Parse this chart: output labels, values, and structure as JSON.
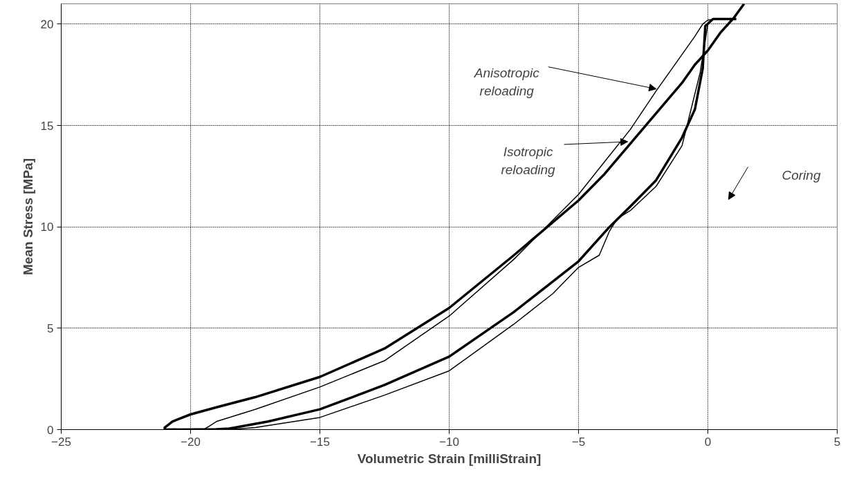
{
  "chart_data": {
    "type": "line",
    "xlabel": "Volumetric Strain [milliStrain]",
    "ylabel": "Mean Stress [MPa]",
    "xlim": [
      -25,
      5
    ],
    "ylim": [
      0,
      21
    ],
    "xticks": [
      -25,
      -20,
      -15,
      -10,
      -5,
      0,
      5
    ],
    "yticks": [
      0,
      5,
      10,
      15,
      20
    ],
    "grid": true,
    "line_style": "solid",
    "marker": "none",
    "series": [
      {
        "color": "#000000",
        "x": [
          1.1,
          0.2,
          -0.1,
          -0.2,
          -0.5,
          -1,
          -2,
          -3,
          -3.8,
          -5,
          -7.5,
          -10,
          -12.5,
          -15,
          -17,
          -18.5,
          -19,
          -21,
          -21,
          -20.7,
          -20,
          -19,
          -17.5,
          -15,
          -12.5,
          -10,
          -7.5,
          -5,
          -4,
          -3,
          -2,
          -1,
          -0.5,
          0,
          0.5,
          1,
          1.4
        ],
        "values": [
          20.25,
          20.25,
          19.9,
          17.8,
          15.8,
          14.4,
          12.3,
          11.0,
          10.0,
          8.3,
          5.8,
          3.6,
          2.2,
          1.0,
          0.4,
          0.05,
          0.02,
          0.0,
          0.1,
          0.4,
          0.75,
          1.1,
          1.6,
          2.6,
          4.0,
          6.0,
          8.6,
          11.3,
          12.6,
          14.1,
          15.6,
          17.1,
          18.0,
          18.7,
          19.6,
          20.3,
          21.0
        ]
      },
      {
        "color": "#000000",
        "x": [
          0.0,
          -0.3,
          -1,
          -2,
          -3,
          -3.5,
          -3.8,
          -4.2,
          -5,
          -6,
          -7.5,
          -10,
          -12.5,
          -15,
          -17.5,
          -18.5,
          -19.5,
          -19.3,
          -19,
          -17.5,
          -15,
          -12.5,
          -10,
          -7.5,
          -5,
          -4,
          -3,
          -2,
          -1,
          -0.5,
          -0.2,
          0,
          0.3
        ],
        "values": [
          20.0,
          17.6,
          14.0,
          12.0,
          10.8,
          10.4,
          9.8,
          8.6,
          8.0,
          6.7,
          5.2,
          2.9,
          1.7,
          0.6,
          0.1,
          0.0,
          0.0,
          0.15,
          0.4,
          1.0,
          2.1,
          3.4,
          5.6,
          8.4,
          11.6,
          13.2,
          14.8,
          16.7,
          18.5,
          19.4,
          20.0,
          20.2,
          20.25
        ]
      }
    ],
    "annotations": [
      {
        "text": "Anisotropic reloading",
        "x": -2.0,
        "y": 16.8
      },
      {
        "text": "Isotropic reloading",
        "x": -3.1,
        "y": 14.2
      },
      "Coring"
    ]
  }
}
